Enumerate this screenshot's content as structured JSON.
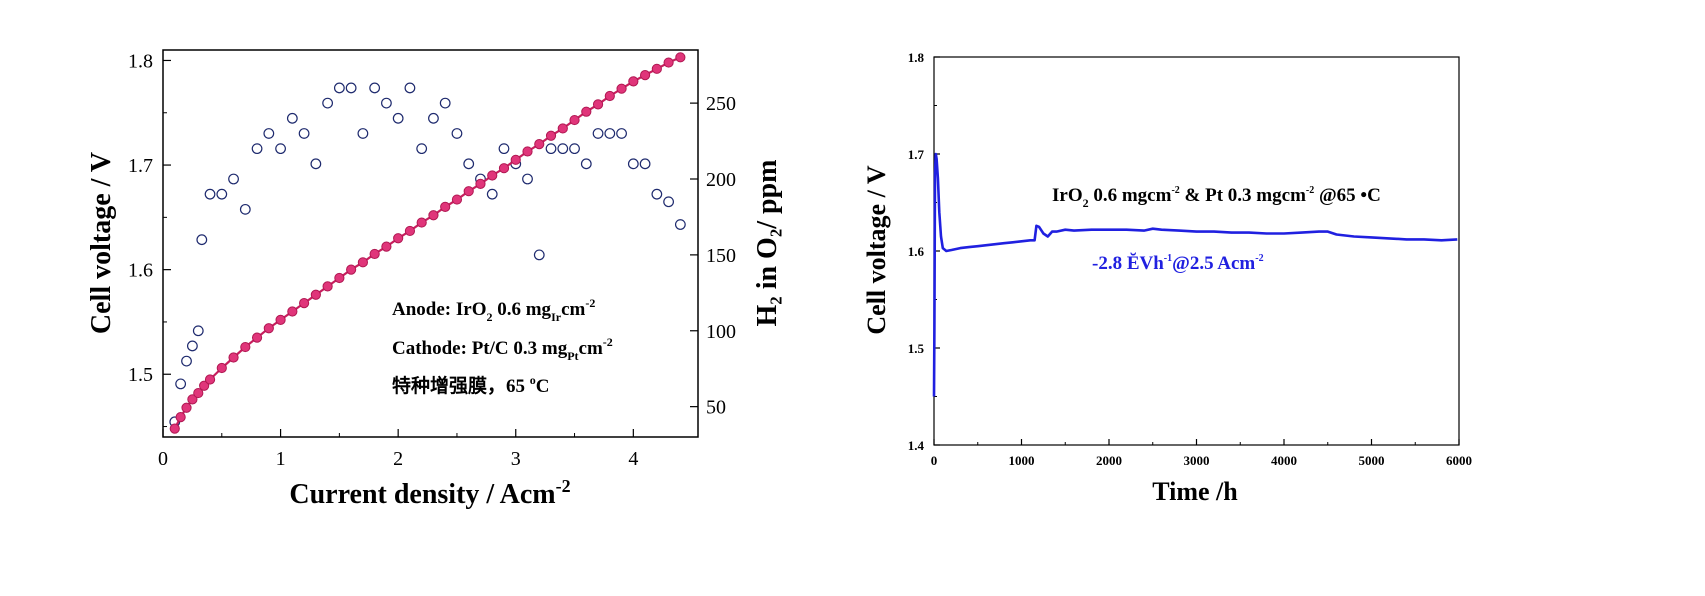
{
  "chart_data": [
    {
      "type": "scatter",
      "xlabel": "Current density / Acm",
      "xlabel_sup": "-2",
      "ylabel": "Cell voltage / V",
      "y2label": "H₂ in O₂/ ppm",
      "xlim": [
        0,
        4.55
      ],
      "ylim": [
        1.44,
        1.81
      ],
      "y2lim": [
        30,
        285
      ],
      "x_ticks": [
        "0",
        "1",
        "2",
        "3",
        "4"
      ],
      "y_ticks": [
        "1.5",
        "1.6",
        "1.7",
        "1.8"
      ],
      "y2_ticks": [
        "50",
        "100",
        "150",
        "200",
        "250"
      ],
      "annotations": {
        "anode": {
          "pre": "Anode: IrO",
          "s1": "2",
          "mid": " 0.6 mg",
          "s2": "Ir",
          "post": "cm",
          "s3": "-2"
        },
        "cathode": {
          "pre": "Cathode: Pt/C 0.3 mg",
          "s1": "Pt",
          "post": "cm",
          "s2": "-2"
        },
        "membrane": {
          "pre": "特种增强膜，65 ",
          "s1": "o",
          "post": "C"
        }
      },
      "series": [
        {
          "axis": "left",
          "marker": "filled-circle",
          "color": "#e0357a",
          "x": [
            0.1,
            0.15,
            0.2,
            0.25,
            0.3,
            0.35,
            0.4,
            0.5,
            0.6,
            0.7,
            0.8,
            0.9,
            1.0,
            1.1,
            1.2,
            1.3,
            1.4,
            1.5,
            1.6,
            1.7,
            1.8,
            1.9,
            2.0,
            2.1,
            2.2,
            2.3,
            2.4,
            2.5,
            2.6,
            2.7,
            2.8,
            2.9,
            3.0,
            3.1,
            3.2,
            3.3,
            3.4,
            3.5,
            3.6,
            3.7,
            3.8,
            3.9,
            4.0,
            4.1,
            4.2,
            4.3,
            4.4
          ],
          "y": [
            1.448,
            1.459,
            1.468,
            1.476,
            1.482,
            1.489,
            1.495,
            1.506,
            1.516,
            1.526,
            1.535,
            1.544,
            1.552,
            1.56,
            1.568,
            1.576,
            1.584,
            1.592,
            1.6,
            1.607,
            1.615,
            1.622,
            1.63,
            1.637,
            1.645,
            1.652,
            1.66,
            1.667,
            1.675,
            1.682,
            1.69,
            1.697,
            1.705,
            1.713,
            1.72,
            1.728,
            1.735,
            1.743,
            1.751,
            1.758,
            1.766,
            1.773,
            1.78,
            1.786,
            1.792,
            1.798,
            1.803
          ]
        },
        {
          "axis": "right",
          "marker": "open-circle",
          "color": "#1e2a6e",
          "x": [
            0.1,
            0.15,
            0.2,
            0.25,
            0.3,
            0.33,
            0.4,
            0.5,
            0.6,
            0.7,
            0.8,
            0.9,
            1.0,
            1.1,
            1.2,
            1.3,
            1.4,
            1.5,
            1.6,
            1.7,
            1.8,
            1.9,
            2.0,
            2.1,
            2.2,
            2.3,
            2.4,
            2.5,
            2.6,
            2.7,
            2.8,
            2.9,
            3.0,
            3.1,
            3.2,
            3.3,
            3.4,
            3.5,
            3.6,
            3.7,
            3.8,
            3.9,
            4.0,
            4.1,
            4.2,
            4.3,
            4.4
          ],
          "y": [
            40,
            65,
            80,
            90,
            100,
            160,
            190,
            190,
            200,
            180,
            220,
            230,
            220,
            240,
            230,
            210,
            250,
            260,
            260,
            230,
            260,
            250,
            240,
            260,
            220,
            240,
            250,
            230,
            210,
            200,
            190,
            220,
            210,
            200,
            150,
            220,
            220,
            220,
            210,
            230,
            230,
            230,
            210,
            210,
            190,
            185,
            170
          ]
        }
      ]
    },
    {
      "type": "line",
      "xlabel": "Time /h",
      "ylabel": "Cell voltage / V",
      "xlim": [
        0,
        6000
      ],
      "ylim": [
        1.4,
        1.8
      ],
      "x_ticks": [
        "0",
        "1000",
        "2000",
        "3000",
        "4000",
        "5000",
        "6000"
      ],
      "y_ticks": [
        "1.4",
        "1.5",
        "1.6",
        "1.7",
        "1.8"
      ],
      "annotations": {
        "line1": {
          "pre": "IrO",
          "s1": "2",
          "mid": " 0.6 mgcm",
          "s2": "-2",
          "mid2": " & Pt 0.3 mgcm",
          "s3": "-2",
          "post": " @65 •C"
        },
        "line2": {
          "pre": "-2.8 ĔVh",
          "s1": "-1",
          "mid": "@2.5 Acm",
          "s2": "-2"
        }
      },
      "series": [
        {
          "color": "#2020e0",
          "x": [
            0,
            5,
            12,
            20,
            30,
            45,
            60,
            80,
            100,
            140,
            200,
            300,
            400,
            500,
            600,
            700,
            800,
            900,
            1000,
            1100,
            1150,
            1170,
            1200,
            1250,
            1300,
            1350,
            1400,
            1500,
            1600,
            1800,
            2000,
            2200,
            2400,
            2500,
            2600,
            2800,
            3000,
            3200,
            3400,
            3600,
            3800,
            4000,
            4200,
            4400,
            4500,
            4600,
            4800,
            5000,
            5200,
            5400,
            5600,
            5800,
            5980
          ],
          "y": [
            1.45,
            1.52,
            1.68,
            1.7,
            1.695,
            1.675,
            1.64,
            1.615,
            1.603,
            1.6,
            1.601,
            1.603,
            1.604,
            1.605,
            1.606,
            1.607,
            1.608,
            1.609,
            1.61,
            1.611,
            1.611,
            1.626,
            1.625,
            1.618,
            1.615,
            1.62,
            1.62,
            1.622,
            1.621,
            1.622,
            1.622,
            1.622,
            1.621,
            1.623,
            1.622,
            1.621,
            1.62,
            1.62,
            1.619,
            1.619,
            1.618,
            1.618,
            1.619,
            1.62,
            1.62,
            1.617,
            1.615,
            1.614,
            1.613,
            1.612,
            1.612,
            1.611,
            1.612
          ]
        }
      ]
    }
  ]
}
